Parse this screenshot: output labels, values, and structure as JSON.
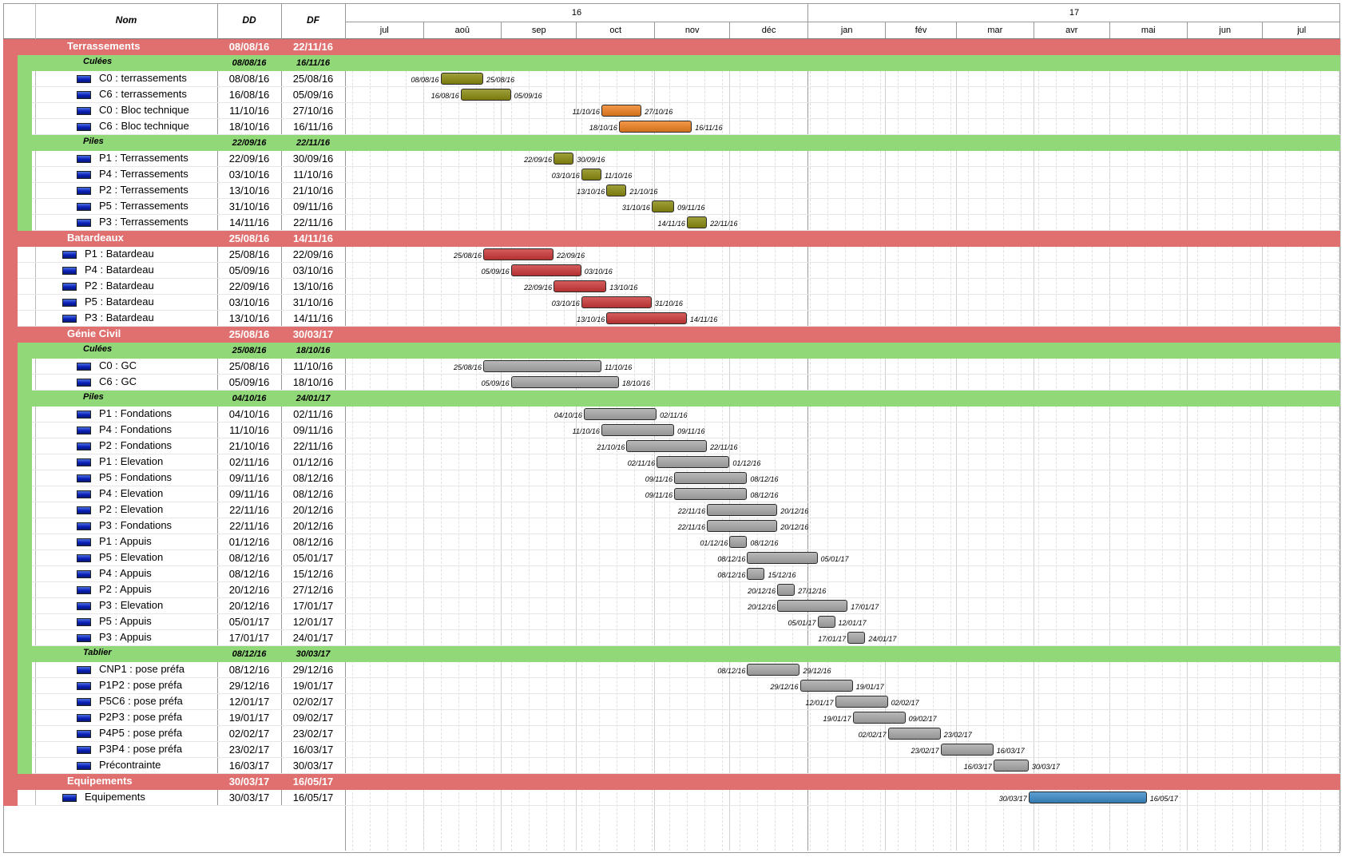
{
  "columns": {
    "name": "Nom",
    "start": "DD",
    "end": "DF"
  },
  "timeline": {
    "years": [
      {
        "label": "16"
      },
      {
        "label": "17"
      }
    ],
    "months": [
      "jul",
      "aoû",
      "sep",
      "oct",
      "nov",
      "déc",
      "jan",
      "fév",
      "mar",
      "avr",
      "mai",
      "jun",
      "jul"
    ]
  },
  "colors": {
    "group_band": "#e07070",
    "subgroup_band": "#90d878",
    "bar_olive": "#8a8a10",
    "bar_orange": "#ef8020",
    "bar_red": "#cc3838",
    "bar_gray": "#a8a8a8",
    "bar_blue": "#3a8ac8"
  },
  "rows": [
    {
      "type": "group",
      "name": "Terrassements",
      "start": "08/08/16",
      "end": "22/11/16"
    },
    {
      "type": "subgroup",
      "name": "Culées",
      "start": "08/08/16",
      "end": "16/11/16"
    },
    {
      "type": "task",
      "name": "C0 : terrassements",
      "start": "08/08/16",
      "end": "25/08/16",
      "color": "olive",
      "icon": "flag-icon"
    },
    {
      "type": "task",
      "name": "C6 : terrassements",
      "start": "16/08/16",
      "end": "05/09/16",
      "color": "olive",
      "icon": "flag-icon"
    },
    {
      "type": "task",
      "name": "C0 : Bloc technique",
      "start": "11/10/16",
      "end": "27/10/16",
      "color": "orange",
      "icon": "flag-icon"
    },
    {
      "type": "task",
      "name": "C6 : Bloc technique",
      "start": "18/10/16",
      "end": "16/11/16",
      "color": "orange",
      "icon": "flag-icon"
    },
    {
      "type": "subgroup",
      "name": "Piles",
      "start": "22/09/16",
      "end": "22/11/16"
    },
    {
      "type": "task",
      "name": "P1 : Terrassements",
      "start": "22/09/16",
      "end": "30/09/16",
      "color": "olive",
      "icon": "flag-icon"
    },
    {
      "type": "task",
      "name": "P4 : Terrassements",
      "start": "03/10/16",
      "end": "11/10/16",
      "color": "olive",
      "icon": "flag-icon"
    },
    {
      "type": "task",
      "name": "P2 : Terrassements",
      "start": "13/10/16",
      "end": "21/10/16",
      "color": "olive",
      "icon": "flag-icon"
    },
    {
      "type": "task",
      "name": "P5 : Terrassements",
      "start": "31/10/16",
      "end": "09/11/16",
      "color": "olive",
      "icon": "flag-icon"
    },
    {
      "type": "task",
      "name": "P3 : Terrassements",
      "start": "14/11/16",
      "end": "22/11/16",
      "color": "olive",
      "icon": "flag-icon"
    },
    {
      "type": "group",
      "name": "Batardeaux",
      "start": "25/08/16",
      "end": "14/11/16"
    },
    {
      "type": "task2",
      "name": "P1 : Batardeau",
      "start": "25/08/16",
      "end": "22/09/16",
      "color": "red",
      "icon": "flag-icon"
    },
    {
      "type": "task2",
      "name": "P4 : Batardeau",
      "start": "05/09/16",
      "end": "03/10/16",
      "color": "red",
      "icon": "flag-icon"
    },
    {
      "type": "task2",
      "name": "P2 : Batardeau",
      "start": "22/09/16",
      "end": "13/10/16",
      "color": "red",
      "icon": "flag-icon"
    },
    {
      "type": "task2",
      "name": "P5 : Batardeau",
      "start": "03/10/16",
      "end": "31/10/16",
      "color": "red",
      "icon": "flag-icon"
    },
    {
      "type": "task2",
      "name": "P3 : Batardeau",
      "start": "13/10/16",
      "end": "14/11/16",
      "color": "red",
      "icon": "flag-icon"
    },
    {
      "type": "group",
      "name": "Génie Civil",
      "start": "25/08/16",
      "end": "30/03/17"
    },
    {
      "type": "subgroup",
      "name": "Culées",
      "start": "25/08/16",
      "end": "18/10/16"
    },
    {
      "type": "task",
      "name": "C0 : GC",
      "start": "25/08/16",
      "end": "11/10/16",
      "color": "gray",
      "icon": "flag-icon"
    },
    {
      "type": "task",
      "name": "C6 : GC",
      "start": "05/09/16",
      "end": "18/10/16",
      "color": "gray",
      "icon": "flag-icon"
    },
    {
      "type": "subgroup",
      "name": "Piles",
      "start": "04/10/16",
      "end": "24/01/17"
    },
    {
      "type": "task",
      "name": "P1 : Fondations",
      "start": "04/10/16",
      "end": "02/11/16",
      "color": "gray",
      "icon": "flag-icon"
    },
    {
      "type": "task",
      "name": "P4 : Fondations",
      "start": "11/10/16",
      "end": "09/11/16",
      "color": "gray",
      "icon": "flag-icon"
    },
    {
      "type": "task",
      "name": "P2 : Fondations",
      "start": "21/10/16",
      "end": "22/11/16",
      "color": "gray",
      "icon": "flag-icon"
    },
    {
      "type": "task",
      "name": "P1 : Elevation",
      "start": "02/11/16",
      "end": "01/12/16",
      "color": "gray",
      "icon": "flag-icon"
    },
    {
      "type": "task",
      "name": "P5 : Fondations",
      "start": "09/11/16",
      "end": "08/12/16",
      "color": "gray",
      "icon": "flag-icon"
    },
    {
      "type": "task",
      "name": "P4 : Elevation",
      "start": "09/11/16",
      "end": "08/12/16",
      "color": "gray",
      "icon": "flag-icon"
    },
    {
      "type": "task",
      "name": "P2 : Elevation",
      "start": "22/11/16",
      "end": "20/12/16",
      "color": "gray",
      "icon": "flag-icon"
    },
    {
      "type": "task",
      "name": "P3 : Fondations",
      "start": "22/11/16",
      "end": "20/12/16",
      "color": "gray",
      "icon": "flag-icon"
    },
    {
      "type": "task",
      "name": "P1 : Appuis",
      "start": "01/12/16",
      "end": "08/12/16",
      "color": "gray",
      "icon": "flag-icon"
    },
    {
      "type": "task",
      "name": "P5 : Elevation",
      "start": "08/12/16",
      "end": "05/01/17",
      "color": "gray",
      "icon": "flag-icon"
    },
    {
      "type": "task",
      "name": "P4 : Appuis",
      "start": "08/12/16",
      "end": "15/12/16",
      "color": "gray",
      "icon": "flag-icon"
    },
    {
      "type": "task",
      "name": "P2 : Appuis",
      "start": "20/12/16",
      "end": "27/12/16",
      "color": "gray",
      "icon": "flag-icon"
    },
    {
      "type": "task",
      "name": "P3 : Elevation",
      "start": "20/12/16",
      "end": "17/01/17",
      "color": "gray",
      "icon": "flag-icon"
    },
    {
      "type": "task",
      "name": "P5 : Appuis",
      "start": "05/01/17",
      "end": "12/01/17",
      "color": "gray",
      "icon": "flag-icon"
    },
    {
      "type": "task",
      "name": "P3 : Appuis",
      "start": "17/01/17",
      "end": "24/01/17",
      "color": "gray",
      "icon": "flag-icon"
    },
    {
      "type": "subgroup",
      "name": "Tablier",
      "start": "08/12/16",
      "end": "30/03/17"
    },
    {
      "type": "task",
      "name": "CNP1 : pose préfa",
      "start": "08/12/16",
      "end": "29/12/16",
      "color": "gray",
      "icon": "flag-icon"
    },
    {
      "type": "task",
      "name": "P1P2 : pose préfa",
      "start": "29/12/16",
      "end": "19/01/17",
      "color": "gray",
      "icon": "flag-icon"
    },
    {
      "type": "task",
      "name": "P5C6 : pose préfa",
      "start": "12/01/17",
      "end": "02/02/17",
      "color": "gray",
      "icon": "flag-icon"
    },
    {
      "type": "task",
      "name": "P2P3 : pose préfa",
      "start": "19/01/17",
      "end": "09/02/17",
      "color": "gray",
      "icon": "flag-icon"
    },
    {
      "type": "task",
      "name": "P4P5 : pose préfa",
      "start": "02/02/17",
      "end": "23/02/17",
      "color": "gray",
      "icon": "flag-icon"
    },
    {
      "type": "task",
      "name": "P3P4 : pose préfa",
      "start": "23/02/17",
      "end": "16/03/17",
      "color": "gray",
      "icon": "flag-icon"
    },
    {
      "type": "task",
      "name": "Précontrainte",
      "start": "16/03/17",
      "end": "30/03/17",
      "color": "gray",
      "icon": "flag-icon"
    },
    {
      "type": "group",
      "name": "Equipements",
      "start": "30/03/17",
      "end": "16/05/17"
    },
    {
      "type": "task2",
      "name": "Equipements",
      "start": "30/03/17",
      "end": "16/05/17",
      "color": "blue",
      "icon": "flag-icon"
    }
  ]
}
